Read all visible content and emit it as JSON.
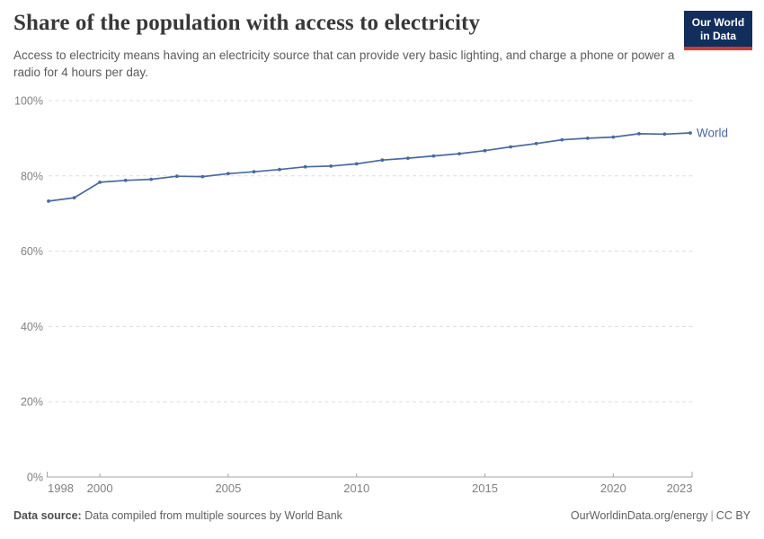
{
  "header": {
    "title": "Share of the population with access to electricity",
    "subtitle": "Access to electricity means having an electricity source that can provide very basic lighting, and charge a phone or power a radio for 4 hours per day.",
    "logo": {
      "line1": "Our World",
      "line2": "in Data",
      "bg_color": "#122e5c",
      "accent_color": "#cd3d34"
    }
  },
  "chart_data": {
    "type": "line",
    "title": "Share of the population with access to electricity",
    "xlabel": "",
    "ylabel": "",
    "xlim": [
      1998,
      2023
    ],
    "ylim": [
      0,
      100
    ],
    "x_ticks": [
      1998,
      2000,
      2005,
      2010,
      2015,
      2020,
      2023
    ],
    "y_ticks": [
      0,
      20,
      40,
      60,
      80,
      100
    ],
    "y_tick_suffix": "%",
    "grid": "horizontal-dashed",
    "legend_position": "end-of-line-label",
    "series": [
      {
        "name": "World",
        "color": "#4b69a0",
        "x": [
          1998,
          1999,
          2000,
          2001,
          2002,
          2003,
          2004,
          2005,
          2006,
          2007,
          2008,
          2009,
          2010,
          2011,
          2012,
          2013,
          2014,
          2015,
          2016,
          2017,
          2018,
          2019,
          2020,
          2021,
          2022,
          2023
        ],
        "values": [
          73.3,
          74.2,
          78.3,
          78.8,
          79.1,
          79.9,
          79.8,
          80.6,
          81.1,
          81.7,
          82.4,
          82.6,
          83.2,
          84.2,
          84.7,
          85.3,
          85.9,
          86.7,
          87.7,
          88.6,
          89.6,
          90.0,
          90.3,
          91.2,
          91.1,
          91.4
        ]
      }
    ]
  },
  "footer": {
    "datasource_label": "Data source:",
    "datasource_text": "Data compiled from multiple sources by World Bank",
    "link": "OurWorldinData.org/energy",
    "separator": "|",
    "license": "CC BY"
  },
  "colors": {
    "title": "#383838",
    "subtitle": "#5b5b5b",
    "axis_labels": "#7f7f7f",
    "gridline": "#dcdcdc",
    "axis_line": "#a5a5a5",
    "line": "#4b69a0"
  }
}
